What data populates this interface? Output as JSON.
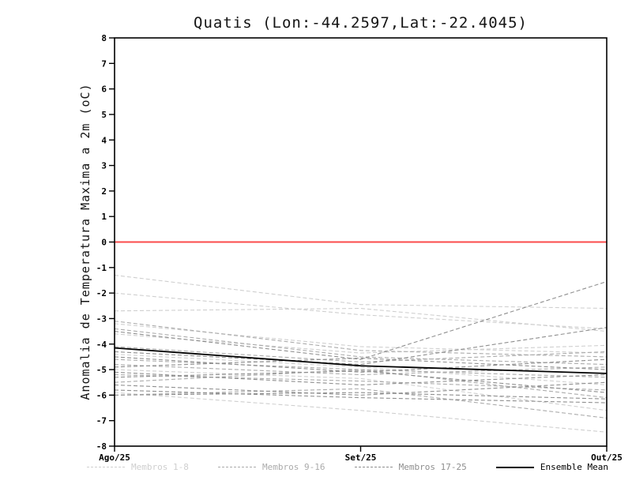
{
  "title": "Quatis (Lon:-44.2597,Lat:-22.4045)",
  "chart_data": {
    "type": "line",
    "title": "Quatis (Lon:-44.2597,Lat:-22.4045)",
    "xlabel": "",
    "ylabel": "Anomalia de Temperatura Maxima a 2m (oC)",
    "x_categories": [
      "Ago/25",
      "Set/25",
      "Out/25"
    ],
    "ylim": [
      -8,
      8
    ],
    "ytick_step": 1,
    "grid": false,
    "legend_position": "bottom",
    "zero_line": {
      "y": 0,
      "color": "#fb4b4b"
    },
    "axis_color": "#000000",
    "groups": [
      {
        "name": "Membros 1-8",
        "color": "#cfcfcf",
        "dash": true,
        "series": [
          [
            -1.3,
            -2.45,
            -2.6
          ],
          [
            -2.0,
            -2.85,
            -3.4
          ],
          [
            -2.7,
            -2.6,
            -3.5
          ],
          [
            -3.2,
            -4.1,
            -4.35
          ],
          [
            -3.6,
            -4.35,
            -4.05
          ],
          [
            -4.4,
            -4.9,
            -5.6
          ],
          [
            -5.0,
            -5.35,
            -6.6
          ],
          [
            -5.9,
            -6.6,
            -7.45
          ]
        ]
      },
      {
        "name": "Membros 9-16",
        "color": "#ababab",
        "dash": true,
        "series": [
          [
            -3.1,
            -4.25,
            -4.5
          ],
          [
            -3.4,
            -4.5,
            -4.8
          ],
          [
            -4.1,
            -4.7,
            -4.3
          ],
          [
            -4.6,
            -5.0,
            -5.3
          ],
          [
            -4.8,
            -5.2,
            -4.9
          ],
          [
            -5.2,
            -5.45,
            -5.8
          ],
          [
            -5.5,
            -5.0,
            -6.1
          ],
          [
            -6.0,
            -5.75,
            -6.9
          ]
        ]
      },
      {
        "name": "Membros 17-25",
        "color": "#8f8f8f",
        "dash": true,
        "series": [
          [
            -3.5,
            -4.6,
            -1.55
          ],
          [
            -4.3,
            -4.8,
            -3.35
          ],
          [
            -4.5,
            -5.1,
            -4.6
          ],
          [
            -4.9,
            -4.55,
            -5.0
          ],
          [
            -5.1,
            -5.6,
            -5.2
          ],
          [
            -5.3,
            -5.05,
            -5.9
          ],
          [
            -5.6,
            -6.0,
            -5.5
          ],
          [
            -5.8,
            -6.1,
            -6.3
          ],
          [
            -6.0,
            -5.9,
            -6.15
          ]
        ]
      },
      {
        "name": "Ensemble Mean",
        "color": "#000000",
        "dash": false,
        "series": [
          [
            -4.15,
            -4.85,
            -5.15
          ]
        ]
      }
    ]
  }
}
